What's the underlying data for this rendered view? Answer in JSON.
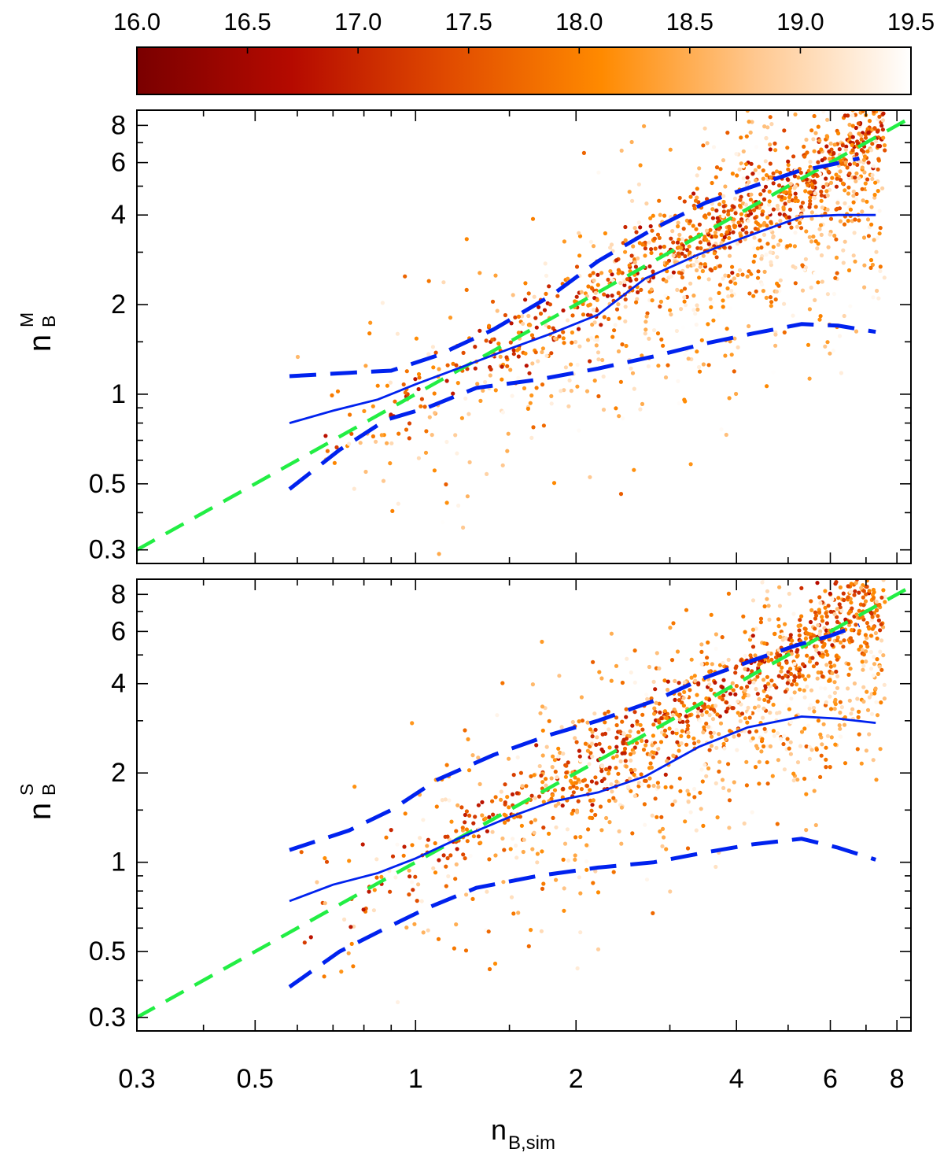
{
  "chart_data": {
    "type": "scatter",
    "x_scale": "log",
    "y_scale": "log",
    "xlabel_main": "n",
    "xlabel_sub": "B,sim",
    "xlim": [
      0.3,
      8.5
    ],
    "ylim": [
      0.27,
      9.0
    ],
    "x_ticks": [
      {
        "value": 0.3,
        "label": "0.3"
      },
      {
        "value": 0.5,
        "label": "0.5"
      },
      {
        "value": 1,
        "label": "1"
      },
      {
        "value": 2,
        "label": "2"
      },
      {
        "value": 4,
        "label": "4"
      },
      {
        "value": 6,
        "label": "6"
      },
      {
        "value": 8,
        "label": "8"
      }
    ],
    "x_minor_ticks": [
      0.4,
      0.6,
      0.7,
      0.8,
      0.9,
      1.5,
      3,
      5,
      7
    ],
    "y_ticks": [
      {
        "value": 0.3,
        "label": "0.3"
      },
      {
        "value": 0.5,
        "label": "0.5"
      },
      {
        "value": 1,
        "label": "1"
      },
      {
        "value": 2,
        "label": "2"
      },
      {
        "value": 4,
        "label": "4"
      },
      {
        "value": 6,
        "label": "6"
      },
      {
        "value": 8,
        "label": "8"
      }
    ],
    "y_minor_ticks": [
      0.4,
      0.6,
      0.7,
      0.8,
      0.9,
      1.5,
      3,
      5,
      7
    ],
    "colorbar": {
      "min": 16.0,
      "max": 19.5,
      "tick_labels": [
        "16.0",
        "16.5",
        "17.0",
        "17.5",
        "18.0",
        "18.5",
        "19.0",
        "19.5"
      ],
      "colors": [
        "#7a0000",
        "#b50a00",
        "#e04a00",
        "#ff8a00",
        "#ffc890",
        "#ffffff"
      ]
    },
    "line_colors": {
      "one_to_one": "#22ee44",
      "median": "#0022ee",
      "percentiles": "#0022ee"
    },
    "panels": [
      {
        "ylabel_main": "n",
        "ylabel_sup": "M",
        "ylabel_sub": "B",
        "one_to_one": {
          "x": [
            0.3,
            8.5
          ],
          "y": [
            0.3,
            8.5
          ]
        },
        "median": {
          "x": [
            0.58,
            0.7,
            0.85,
            1.0,
            1.2,
            1.5,
            1.8,
            2.2,
            2.7,
            3.4,
            4.2,
            5.3,
            6.2,
            7.3
          ],
          "y": [
            0.8,
            0.88,
            0.96,
            1.08,
            1.22,
            1.42,
            1.6,
            1.85,
            2.45,
            2.95,
            3.4,
            3.95,
            4.0,
            4.0
          ]
        },
        "upper": {
          "x": [
            0.58,
            0.75,
            0.9,
            1.1,
            1.4,
            1.8,
            2.2,
            2.8,
            3.5,
            4.3,
            5.2,
            6.0,
            6.8
          ],
          "y": [
            1.15,
            1.18,
            1.2,
            1.35,
            1.65,
            2.15,
            2.8,
            3.6,
            4.4,
            5.0,
            5.6,
            5.9,
            6.2
          ]
        },
        "lower": {
          "x": [
            0.58,
            0.72,
            0.88,
            1.05,
            1.3,
            1.7,
            2.2,
            2.8,
            3.5,
            4.3,
            5.3,
            6.2,
            7.3
          ],
          "y": [
            0.48,
            0.65,
            0.82,
            0.9,
            1.05,
            1.12,
            1.22,
            1.34,
            1.48,
            1.6,
            1.72,
            1.7,
            1.62
          ]
        }
      },
      {
        "ylabel_main": "n",
        "ylabel_sup": "S",
        "ylabel_sub": "B",
        "one_to_one": {
          "x": [
            0.3,
            8.5
          ],
          "y": [
            0.3,
            8.5
          ]
        },
        "median": {
          "x": [
            0.58,
            0.7,
            0.85,
            1.0,
            1.2,
            1.5,
            1.8,
            2.2,
            2.7,
            3.4,
            4.2,
            5.3,
            6.2,
            7.3
          ],
          "y": [
            0.74,
            0.84,
            0.92,
            1.03,
            1.2,
            1.42,
            1.6,
            1.72,
            1.95,
            2.45,
            2.85,
            3.1,
            3.05,
            2.95
          ]
        },
        "upper": {
          "x": [
            0.58,
            0.75,
            0.9,
            1.1,
            1.4,
            1.8,
            2.2,
            2.8,
            3.5,
            4.3,
            5.2,
            6.0,
            6.8
          ],
          "y": [
            1.1,
            1.28,
            1.5,
            1.9,
            2.3,
            2.7,
            3.0,
            3.5,
            4.2,
            4.8,
            5.4,
            5.8,
            6.3
          ]
        },
        "lower": {
          "x": [
            0.58,
            0.72,
            0.88,
            1.05,
            1.3,
            1.7,
            2.2,
            2.8,
            3.5,
            4.3,
            5.3,
            6.2,
            7.3
          ],
          "y": [
            0.38,
            0.5,
            0.6,
            0.7,
            0.82,
            0.9,
            0.96,
            1.0,
            1.08,
            1.15,
            1.2,
            1.12,
            1.02
          ]
        }
      }
    ]
  }
}
